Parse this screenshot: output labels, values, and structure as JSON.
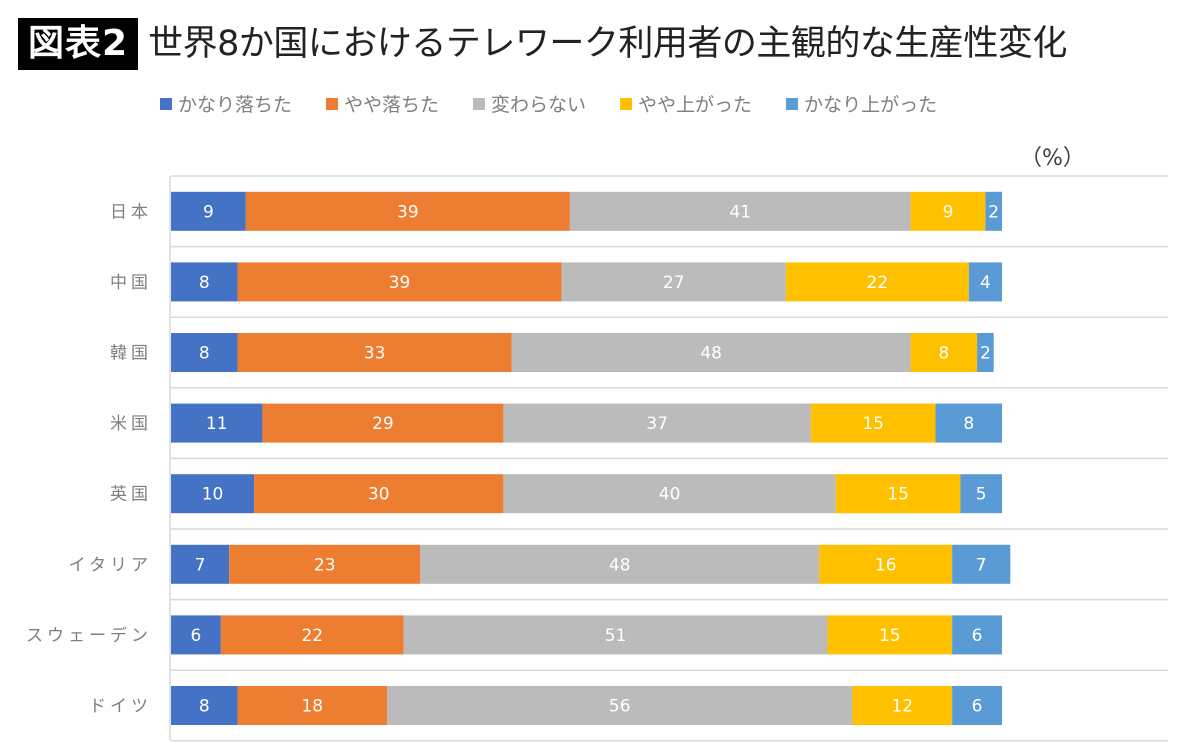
{
  "header": {
    "badge": "図表2",
    "title": "世界8か国におけるテレワーク利用者の主観的な生産性変化"
  },
  "chart_data": {
    "type": "bar",
    "orientation": "horizontal",
    "stacked": true,
    "title": "世界8か国におけるテレワーク利用者の主観的な生産性変化",
    "unit_label": "（%）",
    "xlabel": "",
    "ylabel": "",
    "xlim": [
      0,
      100
    ],
    "grid": true,
    "legend_position": "top",
    "categories": [
      "日本",
      "中国",
      "韓国",
      "米国",
      "英国",
      "イタリア",
      "スウェーデン",
      "ドイツ"
    ],
    "series": [
      {
        "name": "かなり落ちた",
        "color": "#4472C4",
        "values": [
          9,
          8,
          8,
          11,
          10,
          7,
          6,
          8
        ]
      },
      {
        "name": "やや落ちた",
        "color": "#ED7D31",
        "values": [
          39,
          39,
          33,
          29,
          30,
          23,
          22,
          18
        ]
      },
      {
        "name": "変わらない",
        "color": "#BBBBBB",
        "values": [
          41,
          27,
          48,
          37,
          40,
          48,
          51,
          56
        ]
      },
      {
        "name": "やや上がった",
        "color": "#FFC000",
        "values": [
          9,
          22,
          8,
          15,
          15,
          16,
          15,
          12
        ]
      },
      {
        "name": "かなり上がった",
        "color": "#5B9BD5",
        "values": [
          2,
          4,
          2,
          8,
          5,
          7,
          6,
          6
        ]
      }
    ]
  }
}
